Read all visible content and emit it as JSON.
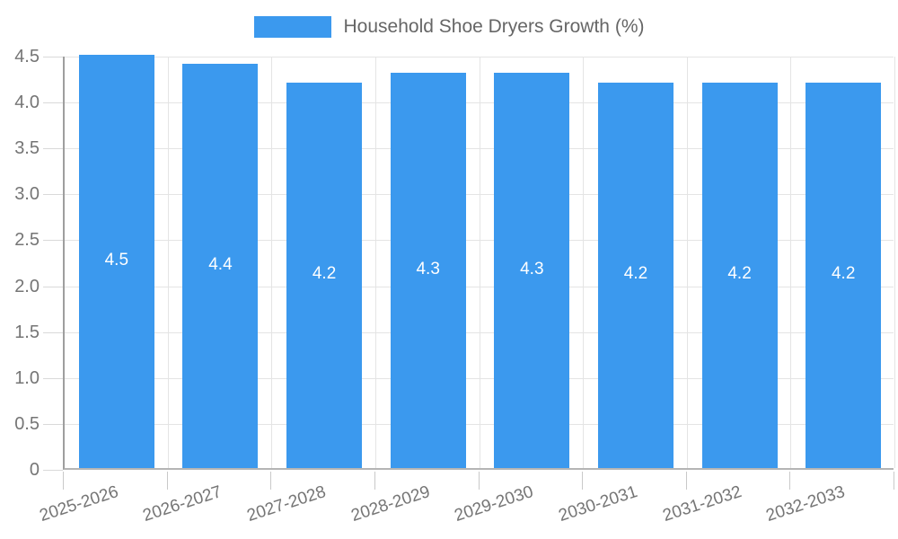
{
  "legend": {
    "series_label": "Household Shoe Dryers Growth (%)"
  },
  "chart_data": {
    "type": "bar",
    "title": "Household Shoe Dryers Growth (%)",
    "categories": [
      "2025-2026",
      "2026-2027",
      "2027-2028",
      "2028-2029",
      "2029-2030",
      "2030-2031",
      "2031-2032",
      "2032-2033"
    ],
    "values": [
      4.5,
      4.4,
      4.2,
      4.3,
      4.3,
      4.2,
      4.2,
      4.2
    ],
    "value_labels": [
      "4.5",
      "4.4",
      "4.2",
      "4.3",
      "4.3",
      "4.2",
      "4.2",
      "4.2"
    ],
    "xlabel": "",
    "ylabel": "",
    "ylim": [
      0,
      4.5
    ],
    "ytick_values": [
      0,
      0.5,
      1.0,
      1.5,
      2.0,
      2.5,
      3.0,
      3.5,
      4.0,
      4.5
    ],
    "ytick_labels": [
      "0",
      "0.5",
      "1.0",
      "1.5",
      "2.0",
      "2.5",
      "3.0",
      "3.5",
      "4.0",
      "4.5"
    ],
    "grid": true,
    "legend_position": "top-center",
    "x_label_rotation_deg": -18,
    "colors": {
      "bar": "#3b99ee",
      "bar_value_label": "#ffffff",
      "axis_text": "#757575",
      "legend_text": "#666666",
      "grid_line": "#e4e4e4",
      "y_axis_line": "#9e9e9e",
      "x_axis_line": "#b5b5b5"
    }
  }
}
